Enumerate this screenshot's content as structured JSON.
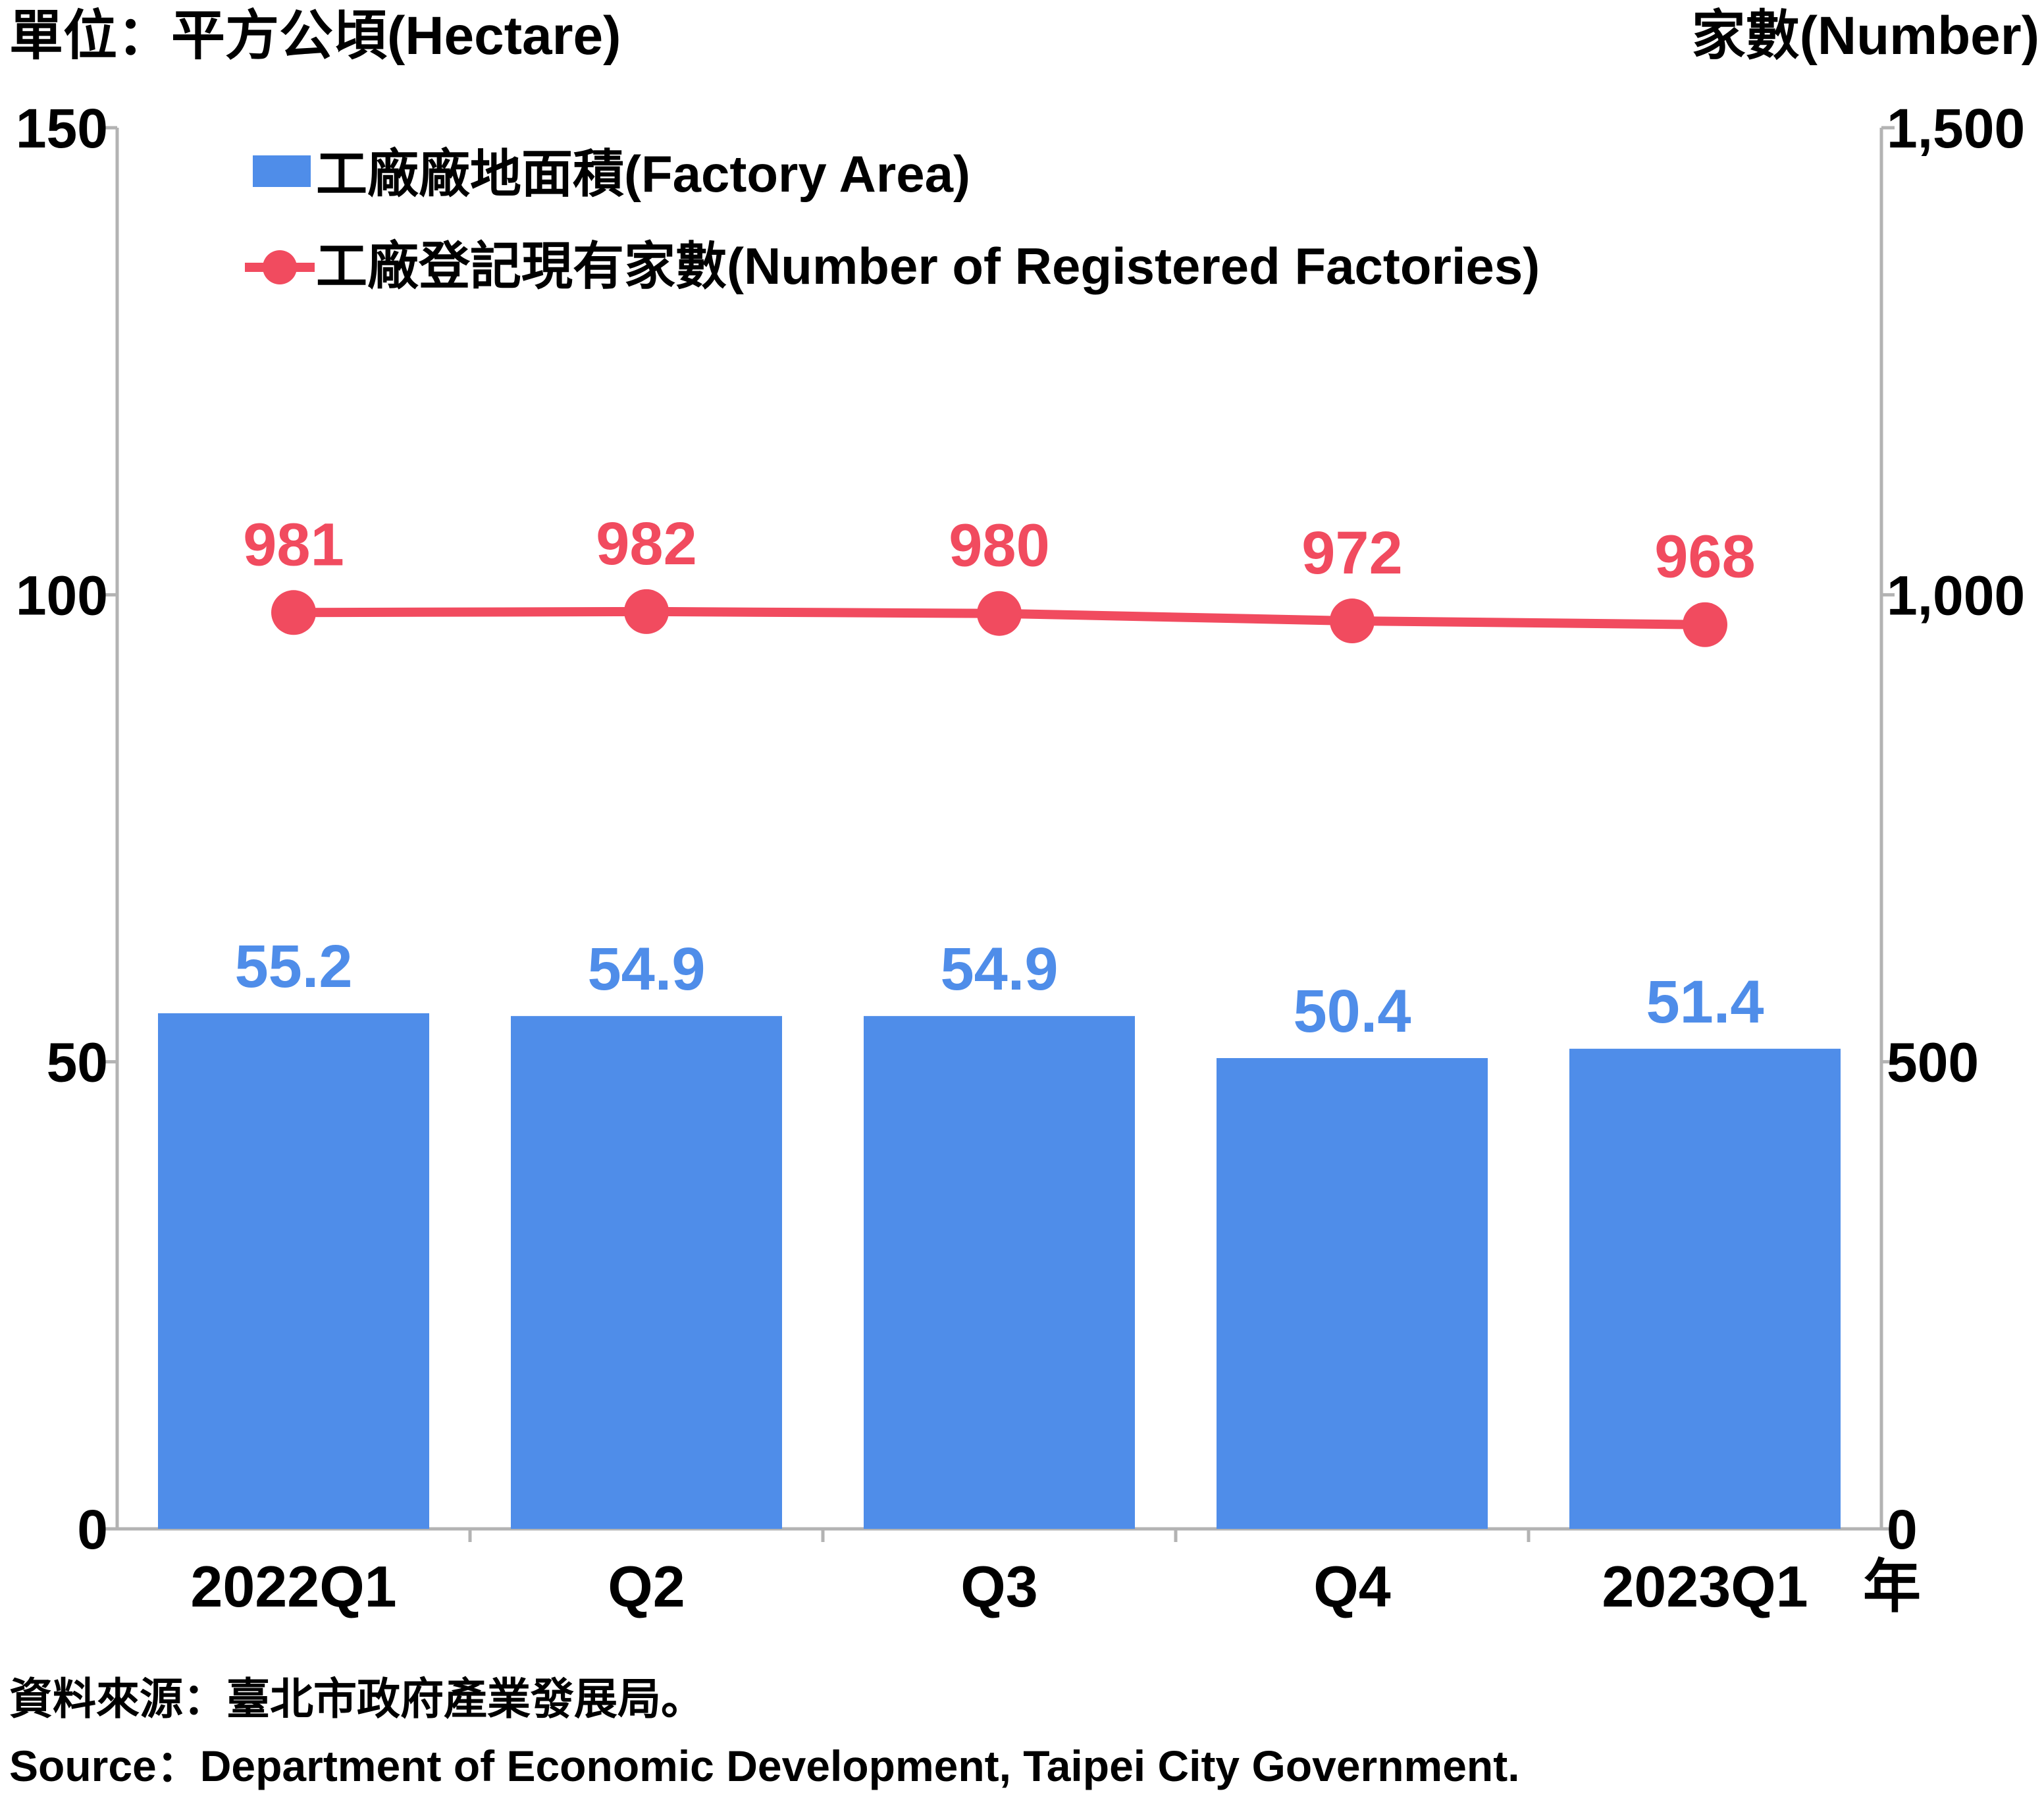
{
  "chart_data": {
    "type": "bar+line",
    "left_unit_label": "單位：平方公頃(Hectare)",
    "right_unit_label": "家數(Number)",
    "categories": [
      "2022Q1",
      "Q2",
      "Q3",
      "Q4",
      "2023Q1"
    ],
    "x_suffix": "年",
    "y_left": {
      "ylim": [
        0,
        150
      ],
      "ticks": [
        "0",
        "50",
        "100",
        "150"
      ],
      "tick_values": [
        0,
        50,
        100,
        150
      ]
    },
    "y_right": {
      "ylim": [
        0,
        1500
      ],
      "ticks": [
        "0",
        "500",
        "1,000",
        "1,500"
      ],
      "tick_values": [
        0,
        500,
        1000,
        1500
      ]
    },
    "series": [
      {
        "name": "工廠廠地面積(Factory Area)",
        "type": "bar",
        "axis": "left",
        "values": [
          55.2,
          54.9,
          54.9,
          50.4,
          51.4
        ],
        "labels": [
          "55.2",
          "54.9",
          "54.9",
          "50.4",
          "51.4"
        ],
        "color": "#4f8de9"
      },
      {
        "name": "工廠登記現有家數(Number of Registered Factories)",
        "type": "line",
        "axis": "right",
        "values": [
          981,
          982,
          980,
          972,
          968
        ],
        "labels": [
          "981",
          "982",
          "980",
          "972",
          "968"
        ],
        "color": "#f14b5f"
      }
    ],
    "grid": false,
    "legend_position": "top-left",
    "source_zh": "資料來源：臺北市政府產業發展局。",
    "source_en": "Source：Department of Economic Development, Taipei City Government."
  },
  "colors": {
    "axis": "#b3b3b3",
    "text": "#000000"
  }
}
